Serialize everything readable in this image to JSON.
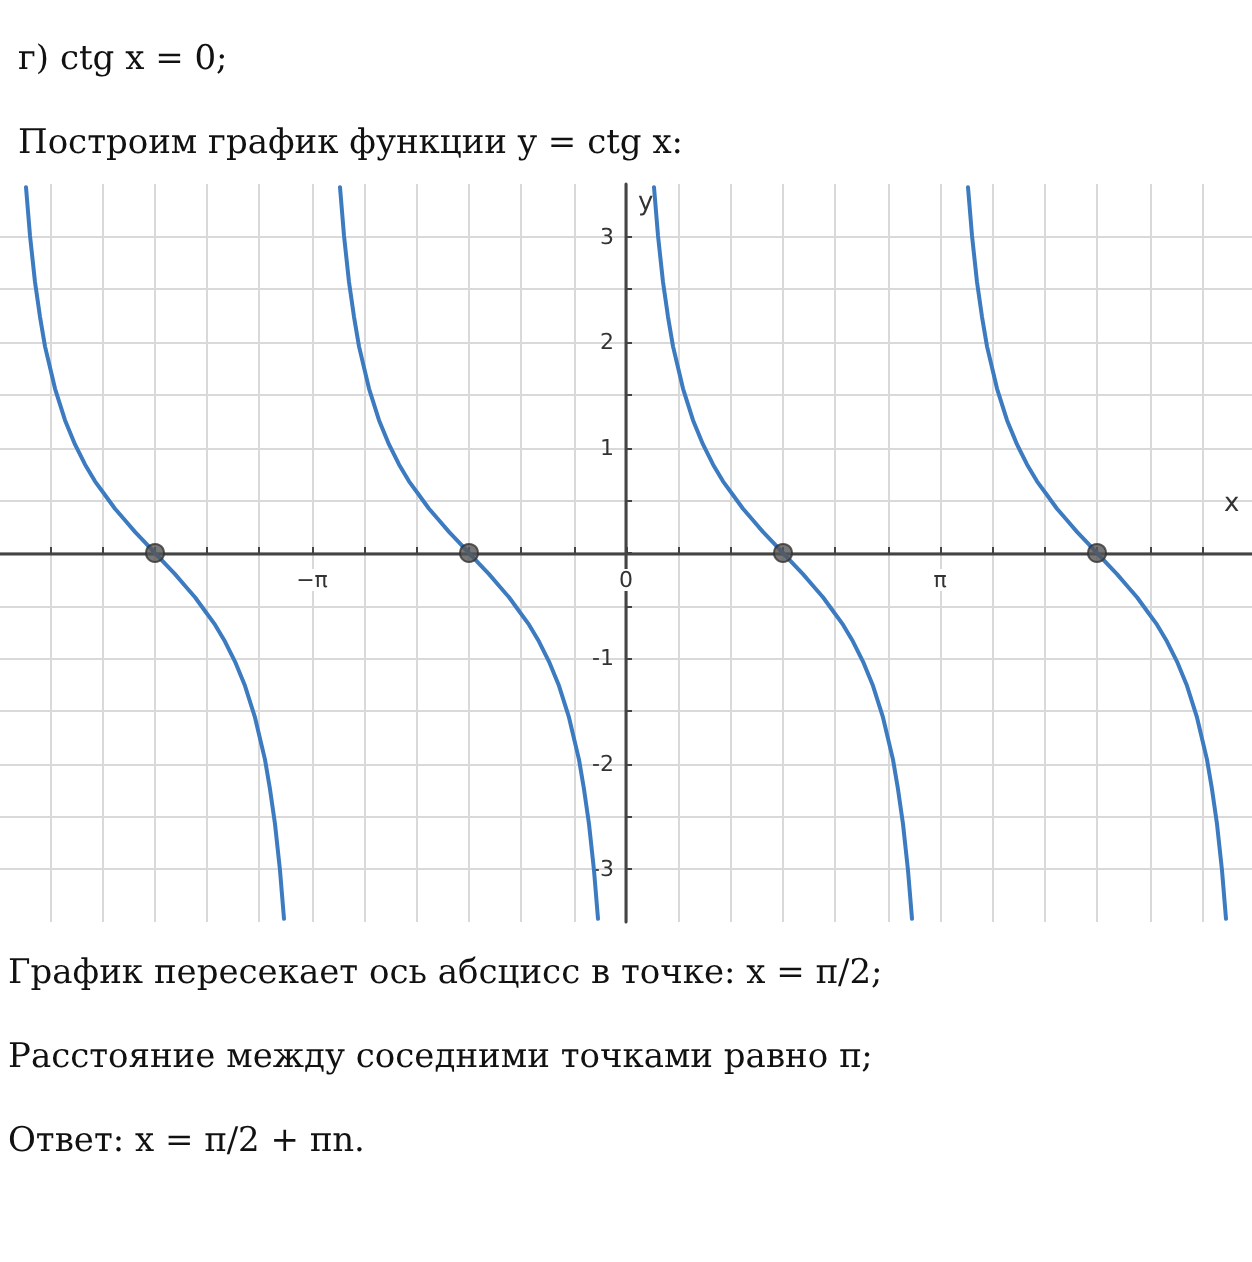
{
  "chart_data": {
    "type": "line",
    "title": "г) ctg x = 0;",
    "subtitle": "Построим график функции y = ctg x:",
    "xlabel": "x",
    "ylabel": "y",
    "annotations": [
      "График пересекает ось абсцисс в точке: x = π/2;",
      "Расстояние между соседними точками равно π;",
      "Ответ: x = π/2 + πn."
    ],
    "xlim": [
      -6.26,
      6.26
    ],
    "ylim": [
      -3.5,
      3.5
    ],
    "xticks": [
      {
        "value": -5.76,
        "label": null
      },
      {
        "value": -5.24,
        "label": null
      },
      {
        "value": -4.71,
        "label": null
      },
      {
        "value": -4.19,
        "label": null
      },
      {
        "value": -3.67,
        "label": null
      },
      {
        "value": -3.14,
        "label": "−π"
      },
      {
        "value": -2.62,
        "label": null
      },
      {
        "value": -2.09,
        "label": null
      },
      {
        "value": -1.57,
        "label": null
      },
      {
        "value": -1.05,
        "label": null
      },
      {
        "value": -0.52,
        "label": null
      },
      {
        "value": 0,
        "label": "0"
      },
      {
        "value": 0.52,
        "label": null
      },
      {
        "value": 1.05,
        "label": null
      },
      {
        "value": 1.57,
        "label": null
      },
      {
        "value": 2.09,
        "label": null
      },
      {
        "value": 2.62,
        "label": null
      },
      {
        "value": 3.14,
        "label": "π"
      },
      {
        "value": 3.67,
        "label": null
      },
      {
        "value": 4.19,
        "label": null
      },
      {
        "value": 4.71,
        "label": null
      },
      {
        "value": 5.24,
        "label": null
      },
      {
        "value": 5.76,
        "label": null
      }
    ],
    "yticks": [
      -3,
      {
        "value": -2.5,
        "label": null
      },
      -2,
      {
        "value": -1.5,
        "label": null
      },
      -1,
      {
        "value": -0.5,
        "label": null
      },
      {
        "value": 0,
        "label": null
      },
      {
        "value": 0.5,
        "label": null
      },
      1,
      {
        "value": 1.5,
        "label": null
      },
      2,
      {
        "value": 2.5,
        "label": null
      },
      3
    ],
    "grid": true,
    "marker": "none",
    "series": [
      {
        "color": "#3c7bc0",
        "x": [
          -6.0,
          -5.96,
          -5.91,
          -5.86,
          -5.81,
          -5.71,
          -5.61,
          -5.51,
          -5.41,
          -5.31,
          -5.21,
          -5.11,
          -5.01,
          -4.91,
          -4.81,
          -4.71,
          -4.61,
          -4.51,
          -4.41,
          -4.31,
          -4.21,
          -4.11,
          -4.01,
          -3.91,
          -3.81,
          -3.71,
          -3.61,
          -3.56,
          -3.51,
          -3.46,
          -3.42
        ],
        "values": [
          3.47,
          3.01,
          2.57,
          2.24,
          1.96,
          1.56,
          1.26,
          1.03,
          0.84,
          0.68,
          0.55,
          0.42,
          0.31,
          0.2,
          0.1,
          0,
          -0.1,
          -0.2,
          -0.31,
          -0.42,
          -0.55,
          -0.68,
          -0.84,
          -1.03,
          -1.26,
          -1.56,
          -1.96,
          -2.24,
          -2.57,
          -3.01,
          -3.47
        ]
      },
      {
        "color": "#3c7bc0",
        "x": [
          -2.86,
          -2.82,
          -2.77,
          -2.72,
          -2.67,
          -2.57,
          -2.47,
          -2.37,
          -2.27,
          -2.17,
          -2.07,
          -1.97,
          -1.87,
          -1.77,
          -1.67,
          -1.57,
          -1.47,
          -1.37,
          -1.27,
          -1.17,
          -1.07,
          -0.97,
          -0.87,
          -0.77,
          -0.67,
          -0.57,
          -0.47,
          -0.42,
          -0.37,
          -0.32,
          -0.28
        ],
        "values": [
          3.47,
          3.01,
          2.57,
          2.24,
          1.96,
          1.56,
          1.26,
          1.03,
          0.84,
          0.68,
          0.55,
          0.42,
          0.31,
          0.2,
          0.1,
          0,
          -0.1,
          -0.2,
          -0.31,
          -0.42,
          -0.55,
          -0.68,
          -0.84,
          -1.03,
          -1.26,
          -1.56,
          -1.96,
          -2.24,
          -2.57,
          -3.01,
          -3.47
        ]
      },
      {
        "color": "#3c7bc0",
        "x": [
          0.28,
          0.32,
          0.37,
          0.42,
          0.47,
          0.57,
          0.67,
          0.77,
          0.87,
          0.97,
          1.07,
          1.17,
          1.27,
          1.37,
          1.47,
          1.57,
          1.67,
          1.77,
          1.87,
          1.97,
          2.07,
          2.17,
          2.27,
          2.37,
          2.47,
          2.57,
          2.67,
          2.72,
          2.77,
          2.82,
          2.86
        ],
        "values": [
          3.47,
          3.01,
          2.57,
          2.24,
          1.96,
          1.56,
          1.26,
          1.03,
          0.84,
          0.68,
          0.55,
          0.42,
          0.31,
          0.2,
          0.1,
          0,
          -0.1,
          -0.2,
          -0.31,
          -0.42,
          -0.55,
          -0.68,
          -0.84,
          -1.03,
          -1.26,
          -1.56,
          -1.96,
          -2.24,
          -2.57,
          -3.01,
          -3.47
        ]
      },
      {
        "color": "#3c7bc0",
        "x": [
          3.42,
          3.46,
          3.51,
          3.56,
          3.61,
          3.71,
          3.81,
          3.91,
          4.01,
          4.11,
          4.21,
          4.31,
          4.41,
          4.51,
          4.61,
          4.71,
          4.81,
          4.91,
          5.01,
          5.11,
          5.21,
          5.31,
          5.41,
          5.51,
          5.61,
          5.71,
          5.81,
          5.86,
          5.91,
          5.96,
          6.0
        ],
        "values": [
          3.47,
          3.01,
          2.57,
          2.24,
          1.96,
          1.56,
          1.26,
          1.03,
          0.84,
          0.68,
          0.55,
          0.42,
          0.31,
          0.2,
          0.1,
          0,
          -0.1,
          -0.2,
          -0.31,
          -0.42,
          -0.55,
          -0.68,
          -0.84,
          -1.03,
          -1.26,
          -1.56,
          -1.96,
          -2.24,
          -2.57,
          -3.01,
          -3.47
        ]
      },
      {
        "type": "scatter",
        "marker": "circle",
        "color": "#555555",
        "x": [
          -4.71,
          -1.57,
          1.57,
          4.71
        ],
        "values": [
          0,
          0,
          0,
          0
        ]
      }
    ]
  }
}
